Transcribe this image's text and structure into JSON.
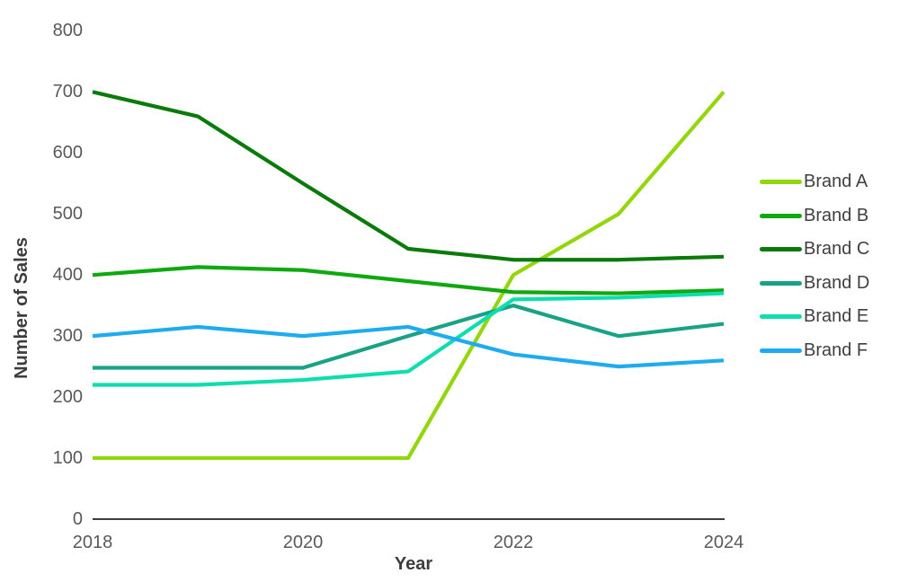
{
  "chart_data": {
    "type": "line",
    "title": "",
    "xlabel": "Year",
    "ylabel": "Number of Sales",
    "x": [
      2018,
      2019,
      2020,
      2021,
      2022,
      2023,
      2024
    ],
    "xlim": [
      2018,
      2024
    ],
    "ylim": [
      0,
      800
    ],
    "xtick_years": [
      2018,
      2020,
      2022,
      2024
    ],
    "xtick_labels": [
      "2018",
      "2020",
      "2022",
      "2024"
    ],
    "ytick_values": [
      0,
      100,
      200,
      300,
      400,
      500,
      600,
      700,
      800
    ],
    "ytick_labels": [
      "0",
      "100",
      "200",
      "300",
      "400",
      "500",
      "600",
      "700",
      "800"
    ],
    "grid": false,
    "legend_position": "right",
    "axis_line_color": "#3d3d3d",
    "tick_label_color": "#595959",
    "series": [
      {
        "name": "Brand A",
        "color": "#93d60b",
        "values": [
          100,
          100,
          100,
          100,
          400,
          500,
          700
        ]
      },
      {
        "name": "Brand B",
        "color": "#0fa80f",
        "values": [
          400,
          413,
          408,
          390,
          372,
          370,
          375
        ]
      },
      {
        "name": "Brand C",
        "color": "#0a7a0a",
        "values": [
          700,
          660,
          550,
          443,
          425,
          425,
          430
        ]
      },
      {
        "name": "Brand D",
        "color": "#1aa287",
        "values": [
          248,
          248,
          248,
          300,
          350,
          300,
          320
        ]
      },
      {
        "name": "Brand E",
        "color": "#0eddad",
        "values": [
          220,
          220,
          228,
          242,
          360,
          363,
          370
        ]
      },
      {
        "name": "Brand F",
        "color": "#1fabf0",
        "values": [
          300,
          315,
          300,
          315,
          270,
          250,
          260
        ]
      }
    ]
  }
}
